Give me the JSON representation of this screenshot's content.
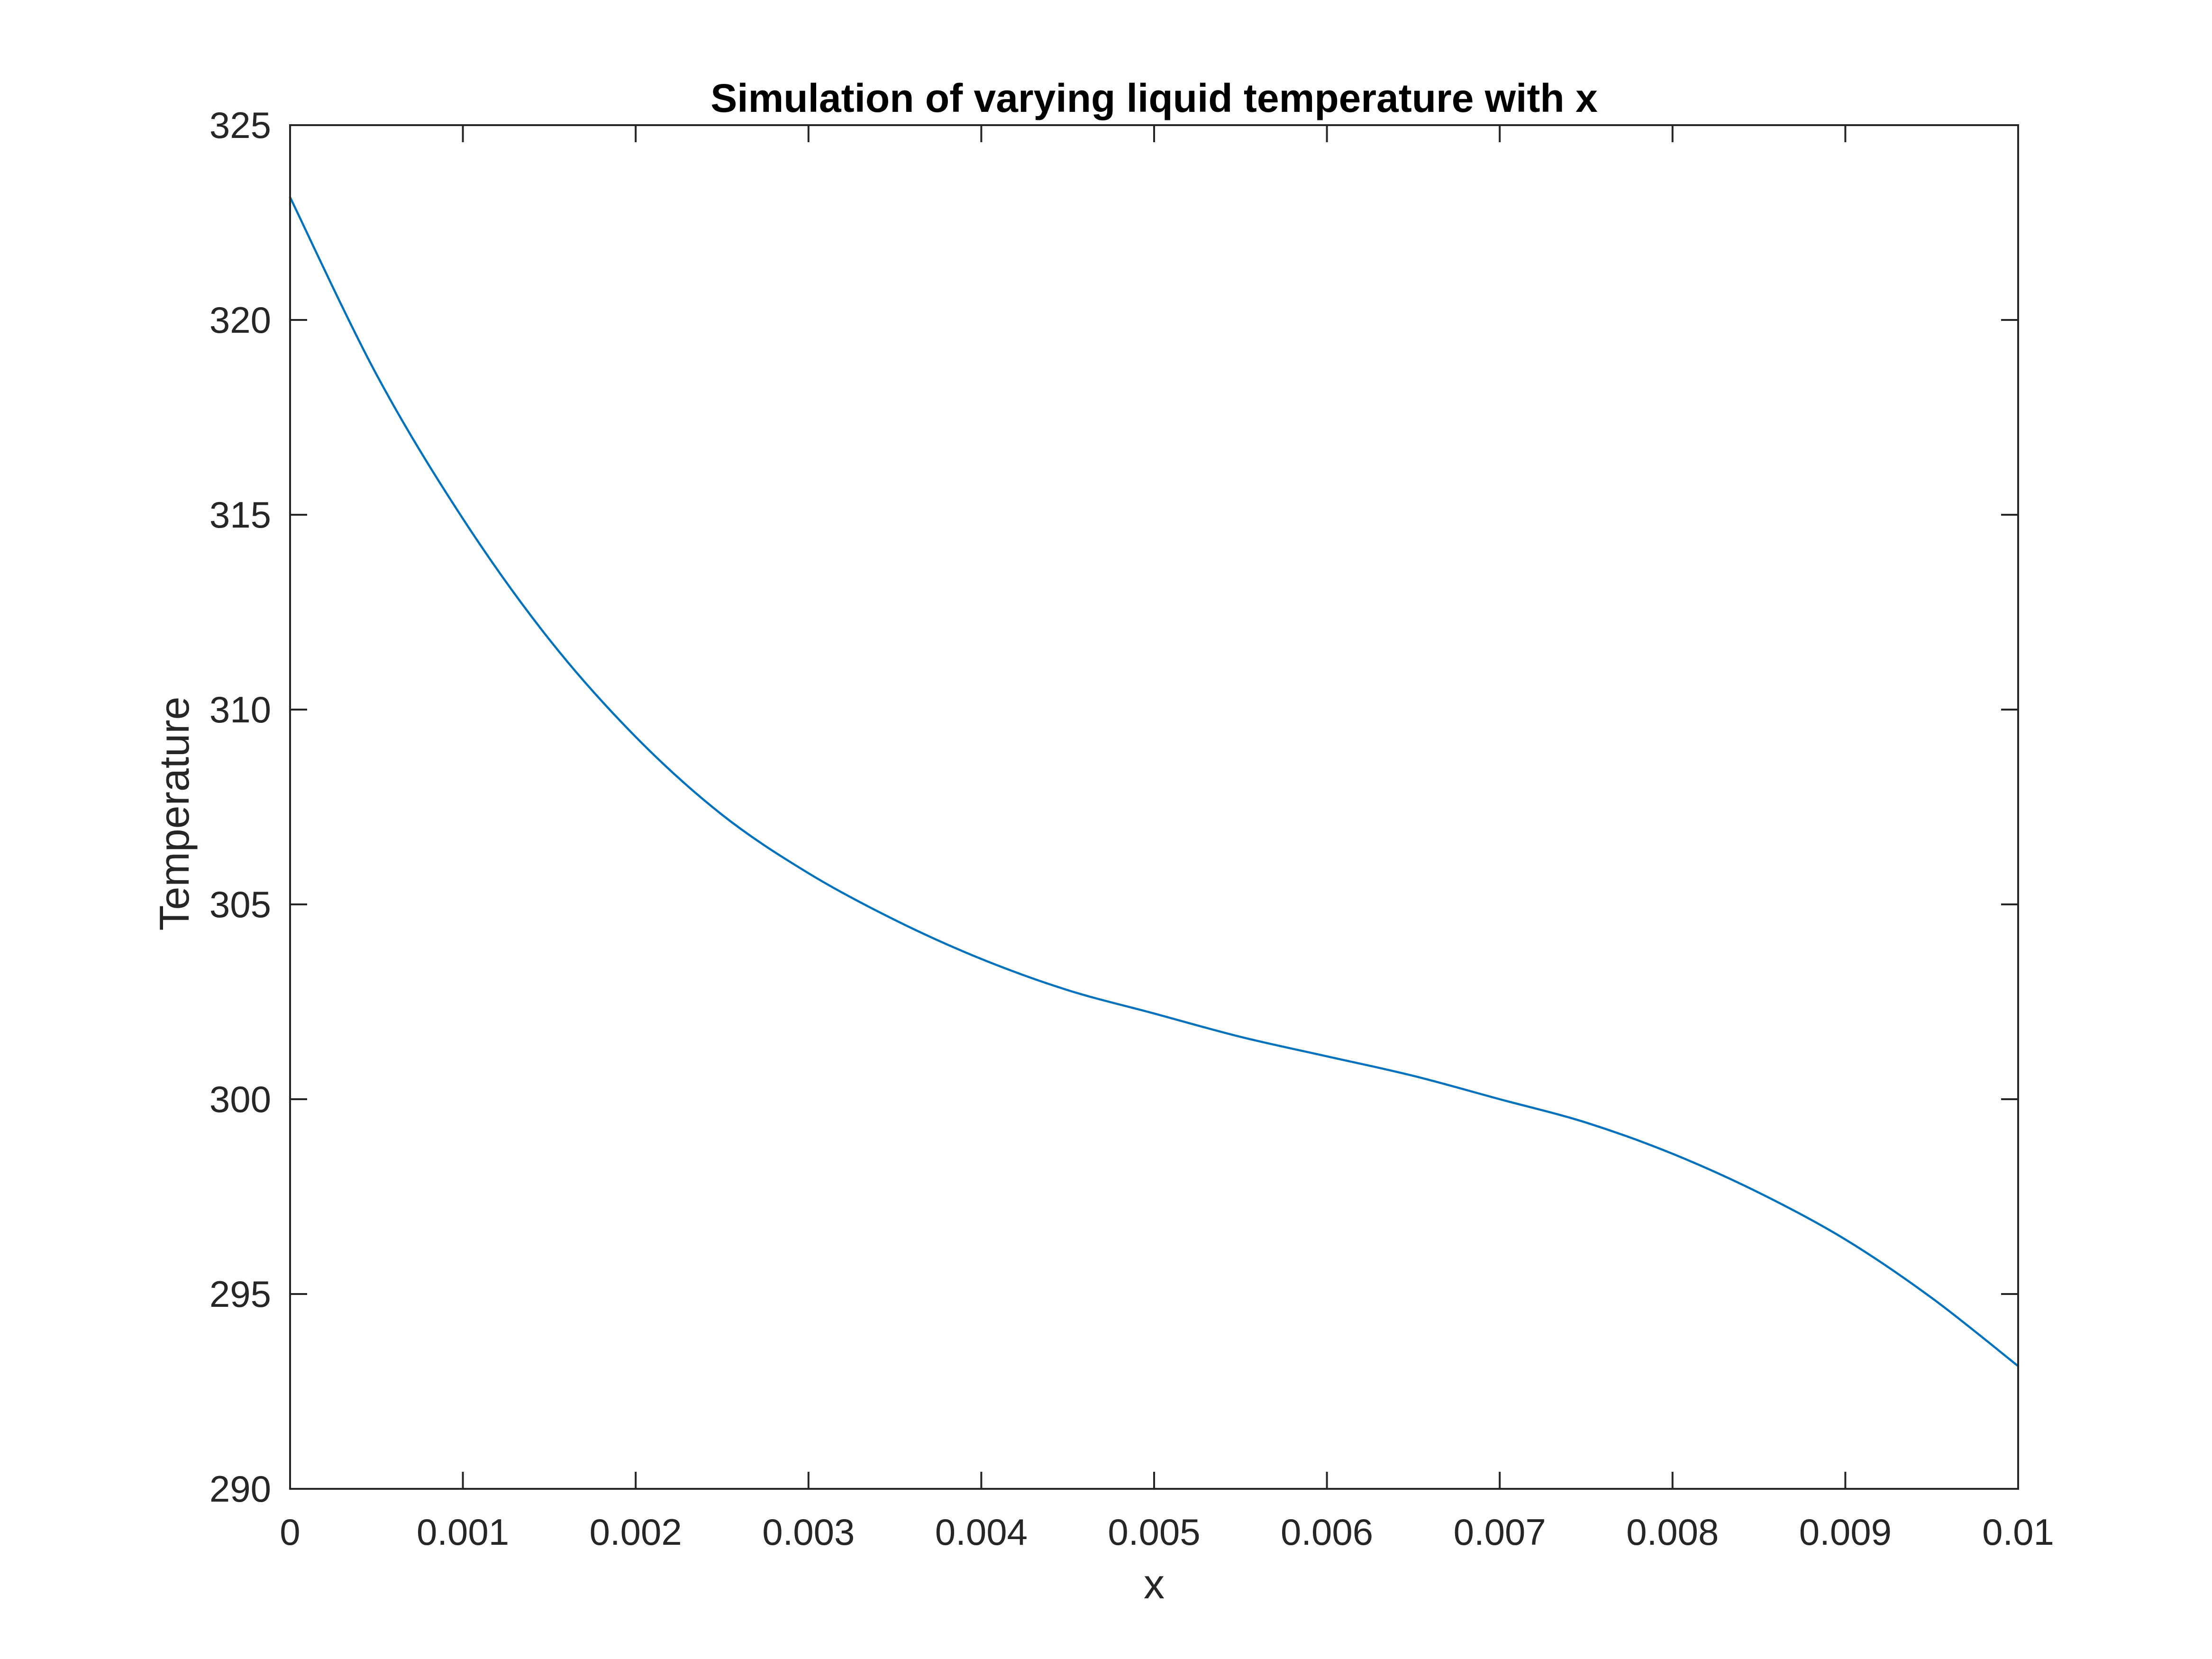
{
  "chart_data": {
    "type": "line",
    "title": "Simulation of varying liquid temperature with x",
    "xlabel": "x",
    "ylabel": "Temperature",
    "xlim": [
      0,
      0.01
    ],
    "ylim": [
      290,
      325
    ],
    "xticks": [
      0,
      0.001,
      0.002,
      0.003,
      0.004,
      0.005,
      0.006,
      0.007,
      0.008,
      0.009,
      0.01
    ],
    "xtick_labels": [
      "0",
      "0.001",
      "0.002",
      "0.003",
      "0.004",
      "0.005",
      "0.006",
      "0.007",
      "0.008",
      "0.009",
      "0.01"
    ],
    "yticks": [
      290,
      295,
      300,
      305,
      310,
      315,
      320,
      325
    ],
    "ytick_labels": [
      "290",
      "295",
      "300",
      "305",
      "310",
      "315",
      "320",
      "325"
    ],
    "grid": false,
    "series": [
      {
        "color": "#0072BD",
        "x": [
          0,
          0.0005,
          0.001,
          0.0015,
          0.002,
          0.0025,
          0.003,
          0.0035,
          0.004,
          0.0045,
          0.005,
          0.0055,
          0.006,
          0.0065,
          0.007,
          0.0075,
          0.008,
          0.0085,
          0.009,
          0.0095,
          0.01
        ],
        "y": [
          323.15,
          318.6,
          314.9,
          311.8,
          309.3,
          307.3,
          305.8,
          304.6,
          303.6,
          302.8,
          302.2,
          301.6,
          301.1,
          300.6,
          300.0,
          299.4,
          298.6,
          297.6,
          296.4,
          294.9,
          293.15
        ]
      }
    ]
  }
}
